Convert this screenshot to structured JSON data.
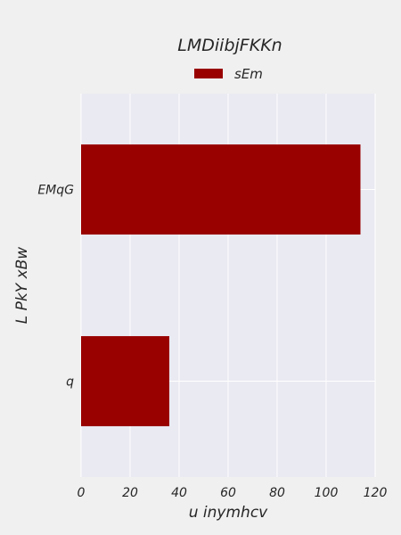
{
  "chart_data": {
    "type": "bar",
    "orientation": "horizontal",
    "title": "LMDiibjFKKn",
    "xlabel": "u inymhcv",
    "ylabel": "L PkY xBw",
    "categories": [
      "EMqG",
      "q"
    ],
    "series": [
      {
        "name": "sEm",
        "values": [
          114,
          36
        ],
        "color": "#990000"
      }
    ],
    "xlim": [
      0,
      120
    ],
    "xticks": [
      0,
      20,
      40,
      60,
      80,
      100,
      120
    ],
    "grid": true,
    "legend_position": "top-center",
    "plot_background": "#eaeaf2",
    "figure_background": "#f0f0f0"
  }
}
